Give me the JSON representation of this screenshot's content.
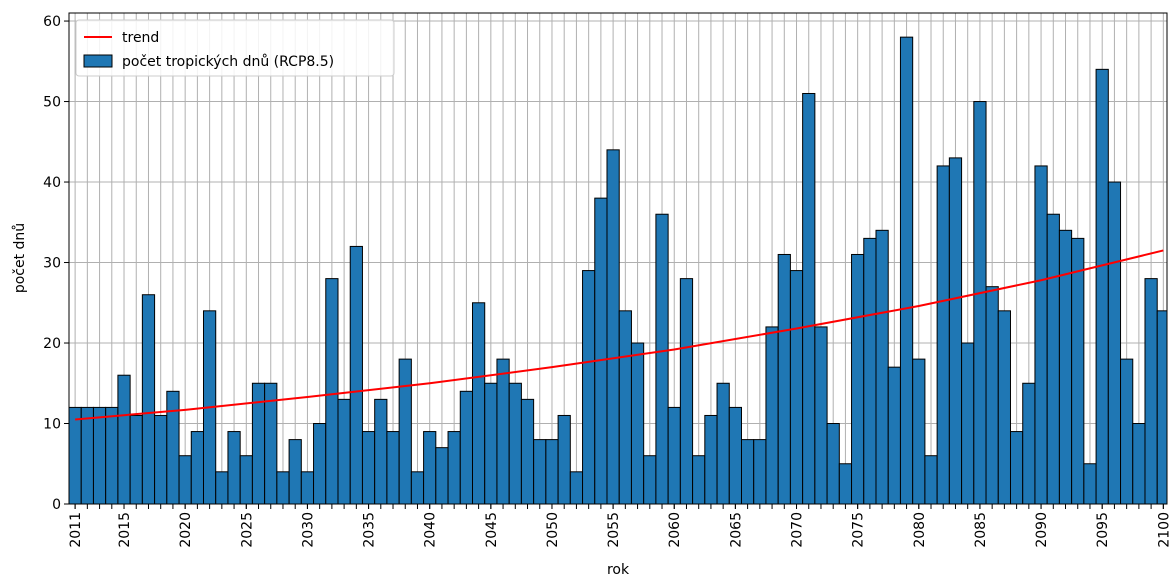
{
  "chart_data": {
    "type": "bar",
    "x": [
      2011,
      2012,
      2013,
      2014,
      2015,
      2016,
      2017,
      2018,
      2019,
      2020,
      2021,
      2022,
      2023,
      2024,
      2025,
      2026,
      2027,
      2028,
      2029,
      2030,
      2031,
      2032,
      2033,
      2034,
      2035,
      2036,
      2037,
      2038,
      2039,
      2040,
      2041,
      2042,
      2043,
      2044,
      2045,
      2046,
      2047,
      2048,
      2049,
      2050,
      2051,
      2052,
      2053,
      2054,
      2055,
      2056,
      2057,
      2058,
      2059,
      2060,
      2061,
      2062,
      2063,
      2064,
      2065,
      2066,
      2067,
      2068,
      2069,
      2070,
      2071,
      2072,
      2073,
      2074,
      2075,
      2076,
      2077,
      2078,
      2079,
      2080,
      2081,
      2082,
      2083,
      2084,
      2085,
      2086,
      2087,
      2088,
      2089,
      2090,
      2091,
      2092,
      2093,
      2094,
      2095,
      2096,
      2097,
      2098,
      2099,
      2100
    ],
    "series": [
      {
        "name": "počet tropických dnů (RCP8.5)",
        "color": "#1f77b4",
        "edgecolor": "#000000",
        "values": [
          12,
          12,
          12,
          12,
          16,
          11,
          26,
          11,
          14,
          6,
          9,
          24,
          4,
          9,
          6,
          15,
          15,
          4,
          8,
          4,
          10,
          28,
          13,
          32,
          9,
          13,
          9,
          18,
          4,
          9,
          7,
          9,
          14,
          25,
          15,
          18,
          15,
          13,
          8,
          8,
          11,
          4,
          29,
          38,
          44,
          24,
          20,
          6,
          36,
          12,
          28,
          6,
          11,
          15,
          12,
          8,
          8,
          22,
          31,
          29,
          51,
          22,
          10,
          5,
          31,
          33,
          34,
          17,
          58,
          18,
          6,
          42,
          43,
          20,
          50,
          27,
          24,
          9,
          15,
          42,
          36,
          34,
          33,
          5,
          54,
          40,
          18,
          10,
          28,
          24
        ]
      },
      {
        "name": "trend",
        "type": "line",
        "color": "#ff0000",
        "x": [
          2011,
          2020,
          2030,
          2040,
          2050,
          2060,
          2070,
          2080,
          2090,
          2100
        ],
        "values": [
          10.5,
          11.7,
          13.3,
          15.0,
          17.0,
          19.2,
          21.8,
          24.6,
          27.8,
          31.5
        ]
      }
    ],
    "xlabel": "rok",
    "ylabel": "počet dnů",
    "xlim": [
      2010.5,
      2100.3
    ],
    "ylim": [
      0,
      61
    ],
    "xticks": [
      2011,
      2015,
      2020,
      2025,
      2030,
      2035,
      2040,
      2045,
      2050,
      2055,
      2060,
      2065,
      2070,
      2075,
      2080,
      2085,
      2090,
      2095,
      2100
    ],
    "yticks": [
      0,
      10,
      20,
      30,
      40,
      50,
      60
    ],
    "grid": true,
    "legend": "upper left"
  }
}
